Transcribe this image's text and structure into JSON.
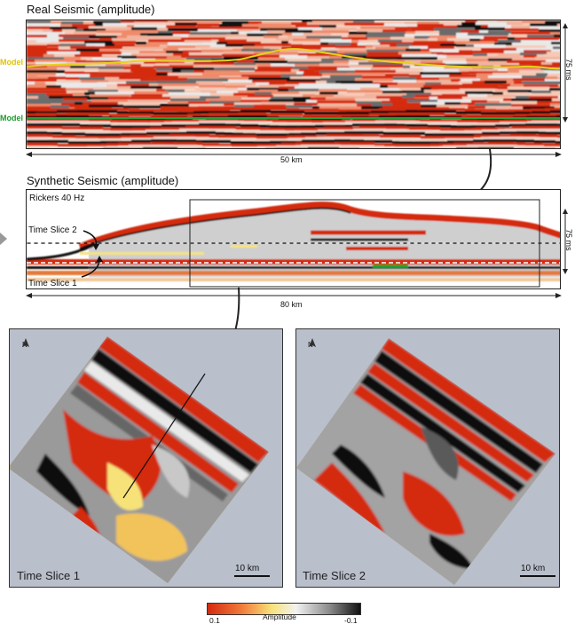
{
  "real_panel": {
    "title": "Real Seismic (amplitude)",
    "scale_horizontal": "50 km",
    "scale_vertical": "75 ms",
    "left_labels": [
      "Model",
      "Model"
    ]
  },
  "synthetic_panel": {
    "title": "Synthetic Seismic (amplitude)",
    "wavelet": "Rickers  40 Hz",
    "slice_labels": [
      "Time Slice 2",
      "Time Slice 1"
    ],
    "scale_horizontal": "80 km",
    "scale_vertical": "75 ms"
  },
  "maps": [
    {
      "label": "Time Slice 1",
      "scale": "10 km",
      "north": "N"
    },
    {
      "label": "Time Slice 2",
      "scale": "10 km",
      "north": "N"
    }
  ],
  "colorbar": {
    "label": "Amplitude",
    "min_label": "0.1",
    "max_label": "-0.1"
  },
  "colors": {
    "red": "#d42a10",
    "yellow_horizon": "#e6d21a",
    "green_horizon": "#22a032",
    "map_background": "#b9bfcb"
  }
}
